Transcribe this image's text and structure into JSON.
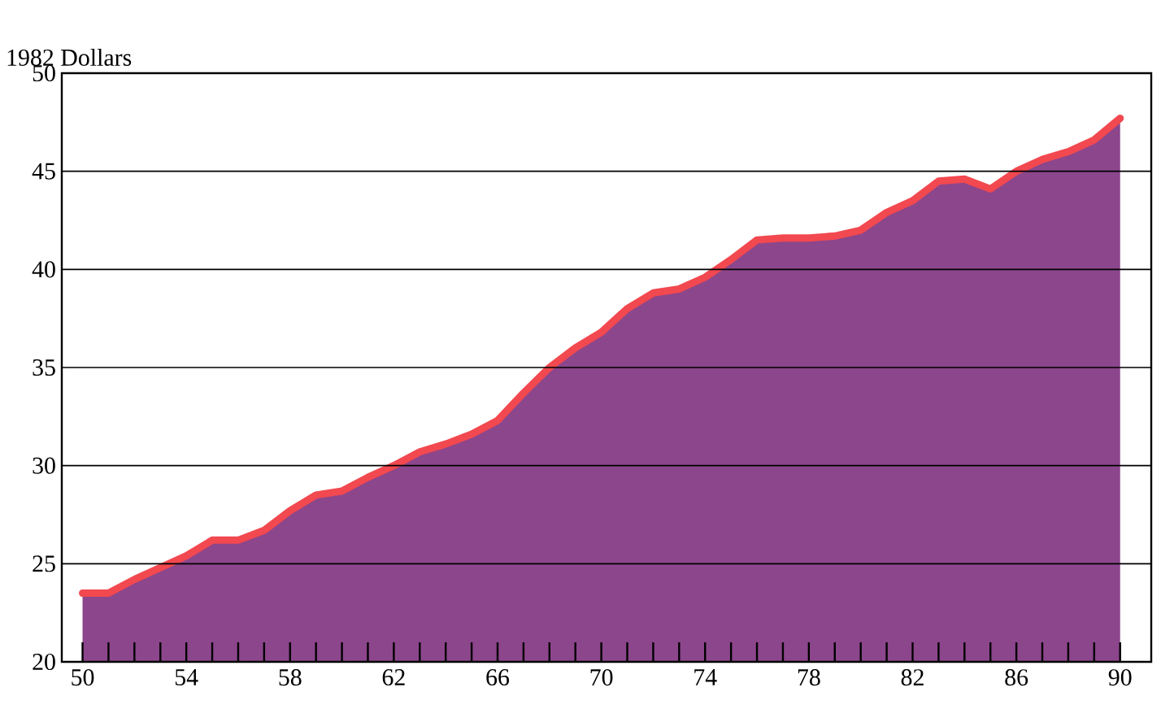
{
  "chart_data": {
    "type": "area",
    "ylabel": "1982 Dollars",
    "x": [
      50,
      51,
      52,
      53,
      54,
      55,
      56,
      57,
      58,
      59,
      60,
      61,
      62,
      63,
      64,
      65,
      66,
      67,
      68,
      69,
      70,
      71,
      72,
      73,
      74,
      75,
      76,
      77,
      78,
      79,
      80,
      81,
      82,
      83,
      84,
      85,
      86,
      87,
      88,
      89,
      90
    ],
    "series": [
      {
        "color": "#f2484f",
        "values": [
          23.5,
          23.5,
          24.2,
          24.8,
          25.4,
          26.2,
          26.2,
          26.7,
          27.7,
          28.5,
          28.7,
          29.4,
          30.0,
          30.7,
          31.1,
          31.6,
          32.3,
          33.7,
          35.0,
          36.0,
          36.8,
          38.0,
          38.8,
          39.0,
          39.6,
          40.5,
          41.5,
          41.6,
          41.6,
          41.7,
          42.0,
          42.9,
          43.5,
          44.5,
          44.6,
          44.1,
          45.0,
          45.6,
          46.0,
          46.6,
          47.7
        ]
      }
    ],
    "xlim": [
      49.2,
      91.2
    ],
    "ylim": [
      20,
      50
    ],
    "xticks": [
      50,
      {
        "value": 51,
        "label": null
      },
      {
        "value": 52,
        "label": null
      },
      {
        "value": 53,
        "label": null
      },
      54,
      {
        "value": 55,
        "label": null
      },
      {
        "value": 56,
        "label": null
      },
      {
        "value": 57,
        "label": null
      },
      58,
      {
        "value": 59,
        "label": null
      },
      {
        "value": 60,
        "label": null
      },
      {
        "value": 61,
        "label": null
      },
      62,
      {
        "value": 63,
        "label": null
      },
      {
        "value": 64,
        "label": null
      },
      {
        "value": 65,
        "label": null
      },
      66,
      {
        "value": 67,
        "label": null
      },
      {
        "value": 68,
        "label": null
      },
      {
        "value": 69,
        "label": null
      },
      70,
      {
        "value": 71,
        "label": null
      },
      {
        "value": 72,
        "label": null
      },
      {
        "value": 73,
        "label": null
      },
      74,
      {
        "value": 75,
        "label": null
      },
      {
        "value": 76,
        "label": null
      },
      {
        "value": 77,
        "label": null
      },
      78,
      {
        "value": 79,
        "label": null
      },
      {
        "value": 80,
        "label": null
      },
      {
        "value": 81,
        "label": null
      },
      82,
      {
        "value": 83,
        "label": null
      },
      {
        "value": 84,
        "label": null
      },
      {
        "value": 85,
        "label": null
      },
      86,
      {
        "value": 87,
        "label": null
      },
      {
        "value": 88,
        "label": null
      },
      {
        "value": 89,
        "label": null
      },
      90
    ],
    "yticks": [
      20,
      25,
      30,
      35,
      40,
      45,
      50
    ],
    "grid": "y",
    "line_style": "solid"
  }
}
